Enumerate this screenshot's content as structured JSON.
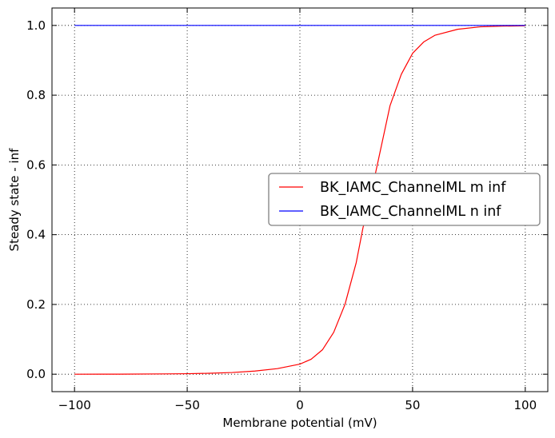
{
  "chart_data": {
    "type": "line",
    "title": "",
    "xlabel": "Membrane potential (mV)",
    "ylabel": "Steady state - inf",
    "xlim": [
      -110,
      110
    ],
    "ylim": [
      -0.05,
      1.05
    ],
    "xticks": [
      -100,
      -50,
      0,
      50,
      100
    ],
    "yticks": [
      0.0,
      0.2,
      0.4,
      0.6,
      0.8,
      1.0
    ],
    "xtick_labels": [
      "−100",
      "−50",
      "0",
      "50",
      "100"
    ],
    "ytick_labels": [
      "0.0",
      "0.2",
      "0.4",
      "0.6",
      "0.8",
      "1.0"
    ],
    "grid": true,
    "legend_position": "center-right",
    "series": [
      {
        "name": "BK_IAMC_ChannelML m inf",
        "color": "#ff0000",
        "x": [
          -100,
          -80,
          -60,
          -50,
          -40,
          -30,
          -20,
          -10,
          0,
          5,
          10,
          15,
          20,
          25,
          28,
          30,
          32,
          35,
          40,
          45,
          50,
          55,
          60,
          70,
          80,
          90,
          100
        ],
        "y": [
          0.0,
          0.0002,
          0.0008,
          0.0014,
          0.0027,
          0.0049,
          0.009,
          0.016,
          0.029,
          0.043,
          0.07,
          0.12,
          0.2,
          0.32,
          0.42,
          0.47,
          0.53,
          0.62,
          0.77,
          0.86,
          0.92,
          0.953,
          0.972,
          0.989,
          0.996,
          0.998,
          0.999
        ]
      },
      {
        "name": "BK_IAMC_ChannelML n inf",
        "color": "#0000ff",
        "x": [
          -100,
          100
        ],
        "y": [
          1.0,
          1.0
        ]
      }
    ]
  }
}
